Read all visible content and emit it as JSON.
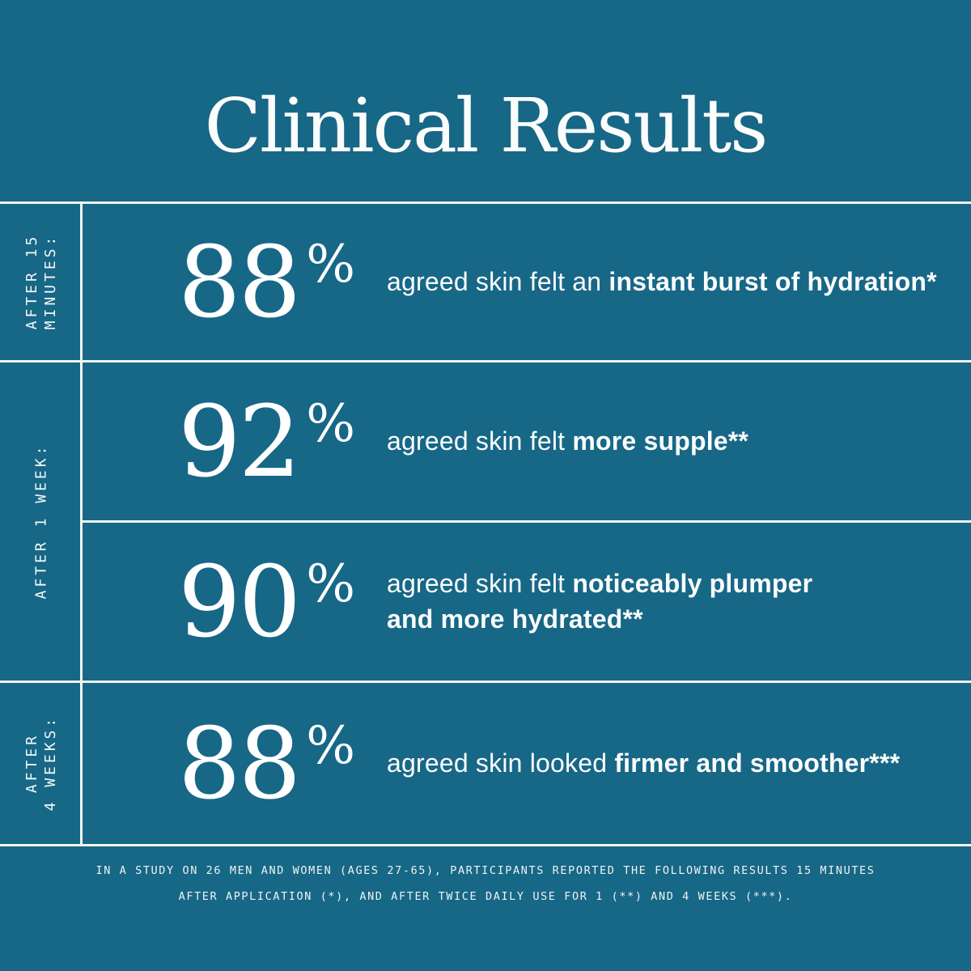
{
  "theme": {
    "background": "#176787",
    "text": "#FFFFFF",
    "divider": "#F1F6F4"
  },
  "title": "Clinical Results",
  "side_labels": [
    {
      "line1": "AFTER 15",
      "line2": "MINUTES:"
    },
    {
      "line1": "AFTER 1 WEEK:"
    },
    {
      "line1": "AFTER",
      "line2": "4 WEEKS:"
    }
  ],
  "rows": [
    {
      "value": "88",
      "unit": "%",
      "desc_regular": "agreed skin felt an ",
      "desc_bold": "instant burst of hydration*"
    },
    {
      "value": "92",
      "unit": "%",
      "desc_regular": "agreed skin felt ",
      "desc_bold": "more supple**"
    },
    {
      "value": "90",
      "unit": "%",
      "desc_regular": "agreed skin felt ",
      "desc_bold_line1": "noticeably plumper",
      "desc_bold_line2": "and more hydrated**"
    },
    {
      "value": "88",
      "unit": "%",
      "desc_regular": "agreed skin looked ",
      "desc_bold": "firmer and smoother***"
    }
  ],
  "footer": {
    "line1": "IN A STUDY ON 26 MEN AND WOMEN (AGES 27-65), PARTICIPANTS REPORTED THE FOLLOWING RESULTS 15 MINUTES",
    "line2": "AFTER APPLICATION (*), AND AFTER TWICE DAILY USE FOR 1 (**) AND 4 WEEKS (***)."
  }
}
